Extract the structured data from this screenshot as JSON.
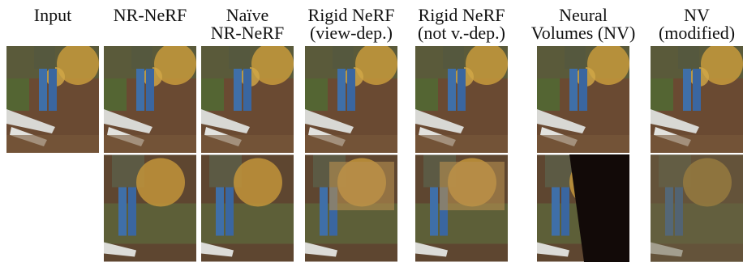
{
  "columns": [
    {
      "header": [
        "Input"
      ]
    },
    {
      "header": [
        "NR-NeRF"
      ]
    },
    {
      "header": [
        "Naïve",
        "NR-NeRF"
      ]
    },
    {
      "header": [
        "Rigid NeRF",
        "(view-dep.)"
      ]
    },
    {
      "header": [
        "Rigid NeRF",
        "(not v.-dep.)"
      ]
    },
    {
      "header": [
        "Neural",
        "Volumes (NV)"
      ]
    },
    {
      "header": [
        "NV",
        "(modified)"
      ]
    }
  ]
}
